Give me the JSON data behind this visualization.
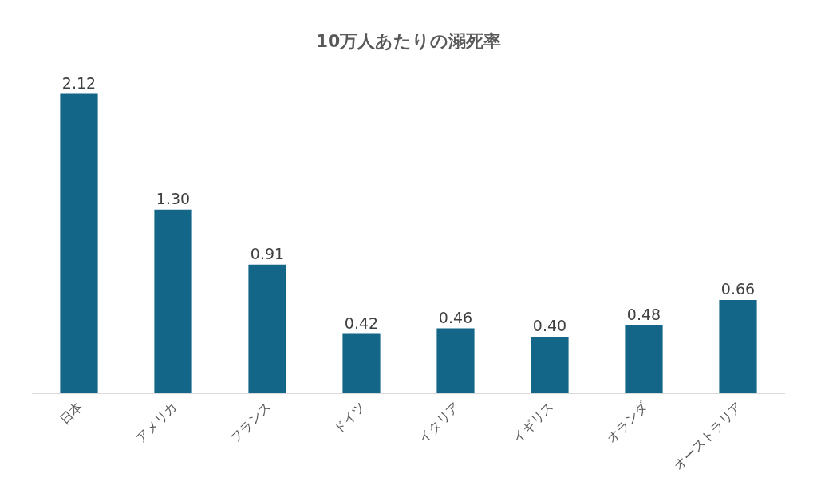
{
  "chart_data": {
    "type": "bar",
    "title": "10万人あたりの溺死率",
    "categories": [
      "日本",
      "アメリカ",
      "フランス",
      "ドイツ",
      "イタリア",
      "イギリス",
      "オランダ",
      "オーストラリア"
    ],
    "values": [
      2.12,
      1.3,
      0.91,
      0.42,
      0.46,
      0.4,
      0.48,
      0.66
    ],
    "value_labels": [
      "2.12",
      "1.30",
      "0.91",
      "0.42",
      "0.46",
      "0.40",
      "0.48",
      "0.66"
    ],
    "color": "#136688",
    "tick_labels": "x"
  }
}
